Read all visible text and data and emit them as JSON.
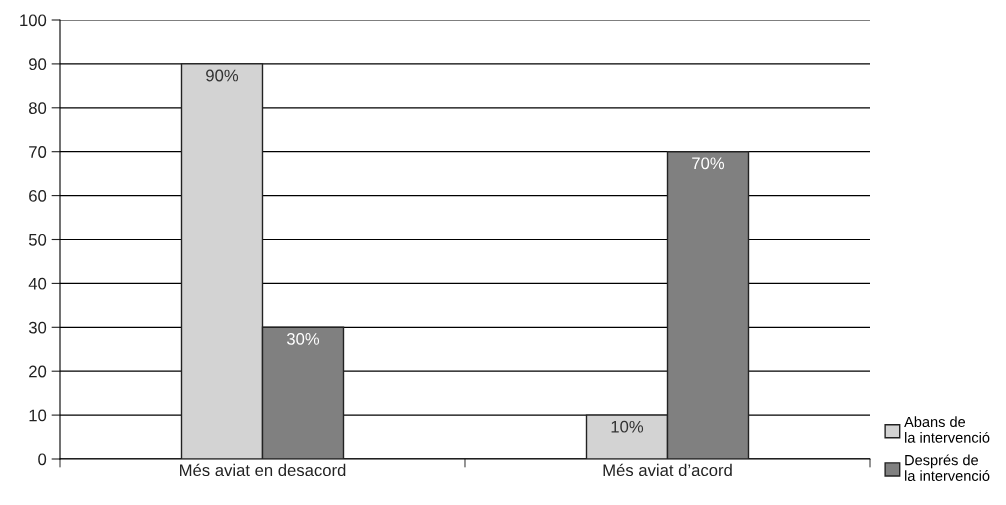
{
  "chart_data": {
    "type": "bar",
    "categories": [
      "Més aviat en desacord",
      "Més aviat d’acord"
    ],
    "series": [
      {
        "name": "Abans de\nla intervenció",
        "color": "#d3d3d3",
        "values": [
          90,
          10
        ],
        "value_labels": [
          "90%",
          "10%"
        ]
      },
      {
        "name": "Després de\nla intervenció",
        "color": "#808080",
        "values": [
          30,
          70
        ],
        "value_labels": [
          "30%",
          "70%"
        ]
      }
    ],
    "ylim": [
      0,
      100
    ],
    "yticks": [
      0,
      10,
      20,
      30,
      40,
      50,
      60,
      70,
      80,
      90,
      100
    ],
    "grid": "y",
    "legend": "bottom right"
  }
}
